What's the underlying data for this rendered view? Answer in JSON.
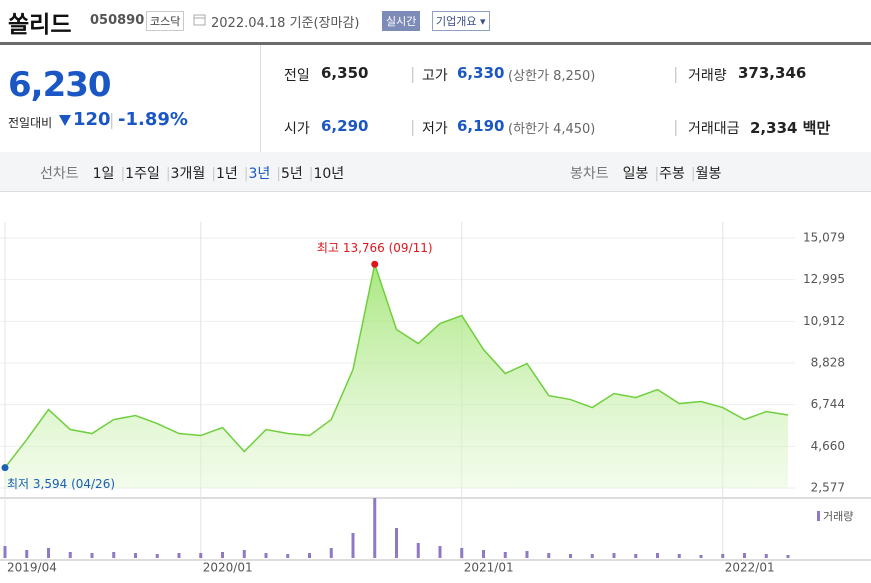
{
  "header": {
    "name": "쏠리드",
    "code": "050890",
    "market": "코스닥",
    "date": "2022.04.18 기준(장마감)",
    "realtime": "실시간",
    "company": "기업개요"
  },
  "quote": {
    "price": "6,230",
    "change_label": "전일대비",
    "change": "120",
    "change_rate": "-1.89%"
  },
  "stats": [
    {
      "label": "전일",
      "value": "6,350"
    },
    {
      "label": "고가",
      "value": "6,330",
      "note": "(상한가 8,250)"
    },
    {
      "label": "거래량",
      "value": "373,346"
    },
    {
      "label": "시가",
      "value": "6,290"
    },
    {
      "label": "저가",
      "value": "6,190",
      "note": "(하한가 4,450)"
    },
    {
      "label": "거래대금",
      "value": "2,334 백만"
    }
  ],
  "tabs": {
    "line_label": "선차트",
    "line": [
      "1일",
      "1주일",
      "3개월",
      "1년",
      "3년",
      "5년",
      "10년"
    ],
    "selected": "3년",
    "candle_label": "봉차트",
    "candle": [
      "일봉",
      "주봉",
      "월봉"
    ]
  },
  "chart_data": {
    "type": "line",
    "color": "#6fcf3c",
    "categories": [
      "2019/04",
      null,
      null,
      null,
      null,
      null,
      null,
      null,
      null,
      "2020/01",
      null,
      null,
      null,
      null,
      null,
      null,
      null,
      null,
      null,
      null,
      null,
      "2021/01",
      null,
      null,
      null,
      null,
      null,
      null,
      null,
      null,
      null,
      null,
      null,
      "2022/01",
      null,
      null,
      null
    ],
    "values": [
      3594,
      5000,
      6500,
      5500,
      5300,
      6000,
      6200,
      5800,
      5300,
      5200,
      5600,
      4400,
      5500,
      5300,
      5200,
      6000,
      8500,
      13766,
      10500,
      9800,
      10800,
      11200,
      9500,
      8300,
      8800,
      7200,
      7000,
      6600,
      7300,
      7100,
      7500,
      6800,
      6900,
      6600,
      6000,
      6400,
      6230
    ],
    "ylim": [
      2577,
      15079
    ],
    "yticks": [
      {
        "value": 2577,
        "label": "2,577"
      },
      {
        "value": 4660,
        "label": "4,660"
      },
      {
        "value": 6744,
        "label": "6,744"
      },
      {
        "value": 8828,
        "label": "8,828"
      },
      {
        "value": 10912,
        "label": "10,912"
      },
      {
        "value": 12995,
        "label": "12,995"
      },
      {
        "value": 15079,
        "label": "15,079"
      }
    ],
    "annotations": [
      {
        "text": "최고 13,766 (09/11)",
        "value": 13766,
        "color": "#e0161b"
      },
      {
        "text": "최저 3,594 (04/26)",
        "value": 3594,
        "color": "#1a5fb4"
      }
    ],
    "volume": {
      "name": "거래량",
      "color": "#8f79c4",
      "values": [
        1200000,
        800000,
        1000000,
        600000,
        500000,
        600000,
        500000,
        400000,
        500000,
        500000,
        600000,
        800000,
        500000,
        400000,
        500000,
        1000000,
        2500000,
        6000000,
        3000000,
        1500000,
        1200000,
        1000000,
        800000,
        600000,
        700000,
        500000,
        400000,
        400000,
        500000,
        400000,
        500000,
        400000,
        300000,
        400000,
        500000,
        400000,
        300000
      ]
    }
  }
}
